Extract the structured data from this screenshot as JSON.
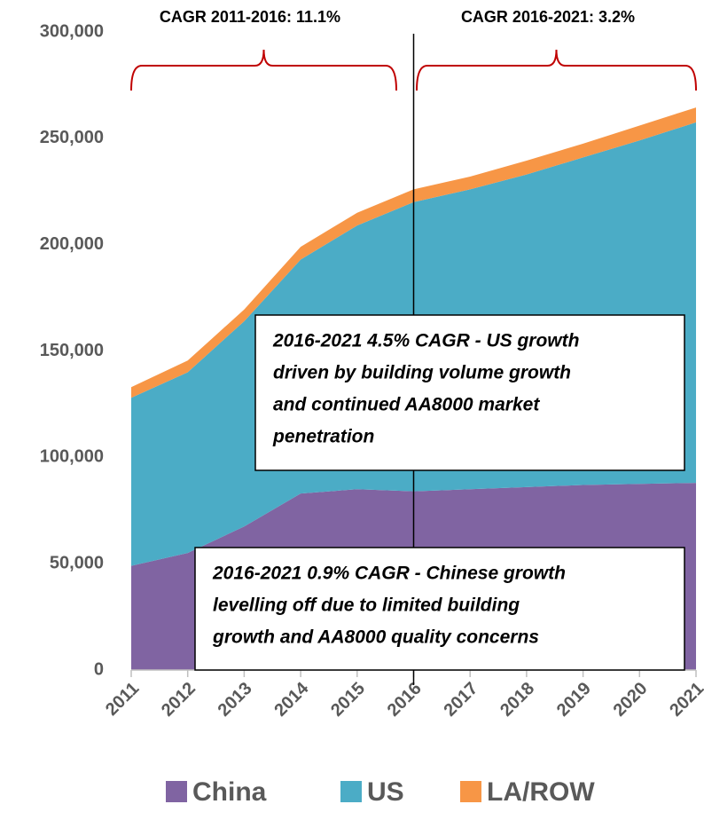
{
  "chart_data": {
    "type": "stacked-area",
    "categories": [
      "2011",
      "2012",
      "2013",
      "2014",
      "2015",
      "2016",
      "2017",
      "2018",
      "2019",
      "2020",
      "2021"
    ],
    "series": [
      {
        "name": "China",
        "color": "#8064a2",
        "values": [
          49000,
          55000,
          67500,
          83000,
          85000,
          84000,
          85000,
          86000,
          87000,
          87500,
          88000
        ]
      },
      {
        "name": "US",
        "color": "#4bacc6",
        "values": [
          79000,
          85000,
          96500,
          110000,
          124000,
          136000,
          141000,
          147000,
          154000,
          161500,
          169500
        ]
      },
      {
        "name": "LA/ROW",
        "color": "#f79646",
        "values": [
          5000,
          5500,
          5500,
          6000,
          6000,
          6000,
          6000,
          6500,
          6500,
          7000,
          7000
        ]
      }
    ],
    "ylim": [
      0,
      300000
    ],
    "yticks": [
      0,
      {
        "value": 50000,
        "label": "50,000"
      },
      {
        "value": 100000,
        "label": "100,000"
      },
      {
        "value": 150000,
        "label": "150,000"
      },
      {
        "value": 200000,
        "label": "200,000"
      },
      {
        "value": 250000,
        "label": "250,000"
      },
      {
        "value": 300000,
        "label": "300,000"
      }
    ],
    "grid": false,
    "annotations": [
      "CAGR 2011-2016: 11.1%",
      "CAGR 2016-2021: 3.2%"
    ],
    "notes": [
      [
        "2016-2021 4.5% CAGR - US growth",
        "driven by building volume growth",
        "and continued AA8000 market",
        "penetration"
      ],
      [
        "2016-2021 0.9% CAGR - Chinese growth",
        "levelling off due to limited building",
        "growth and AA8000 quality concerns"
      ]
    ],
    "legend": "bottom"
  }
}
